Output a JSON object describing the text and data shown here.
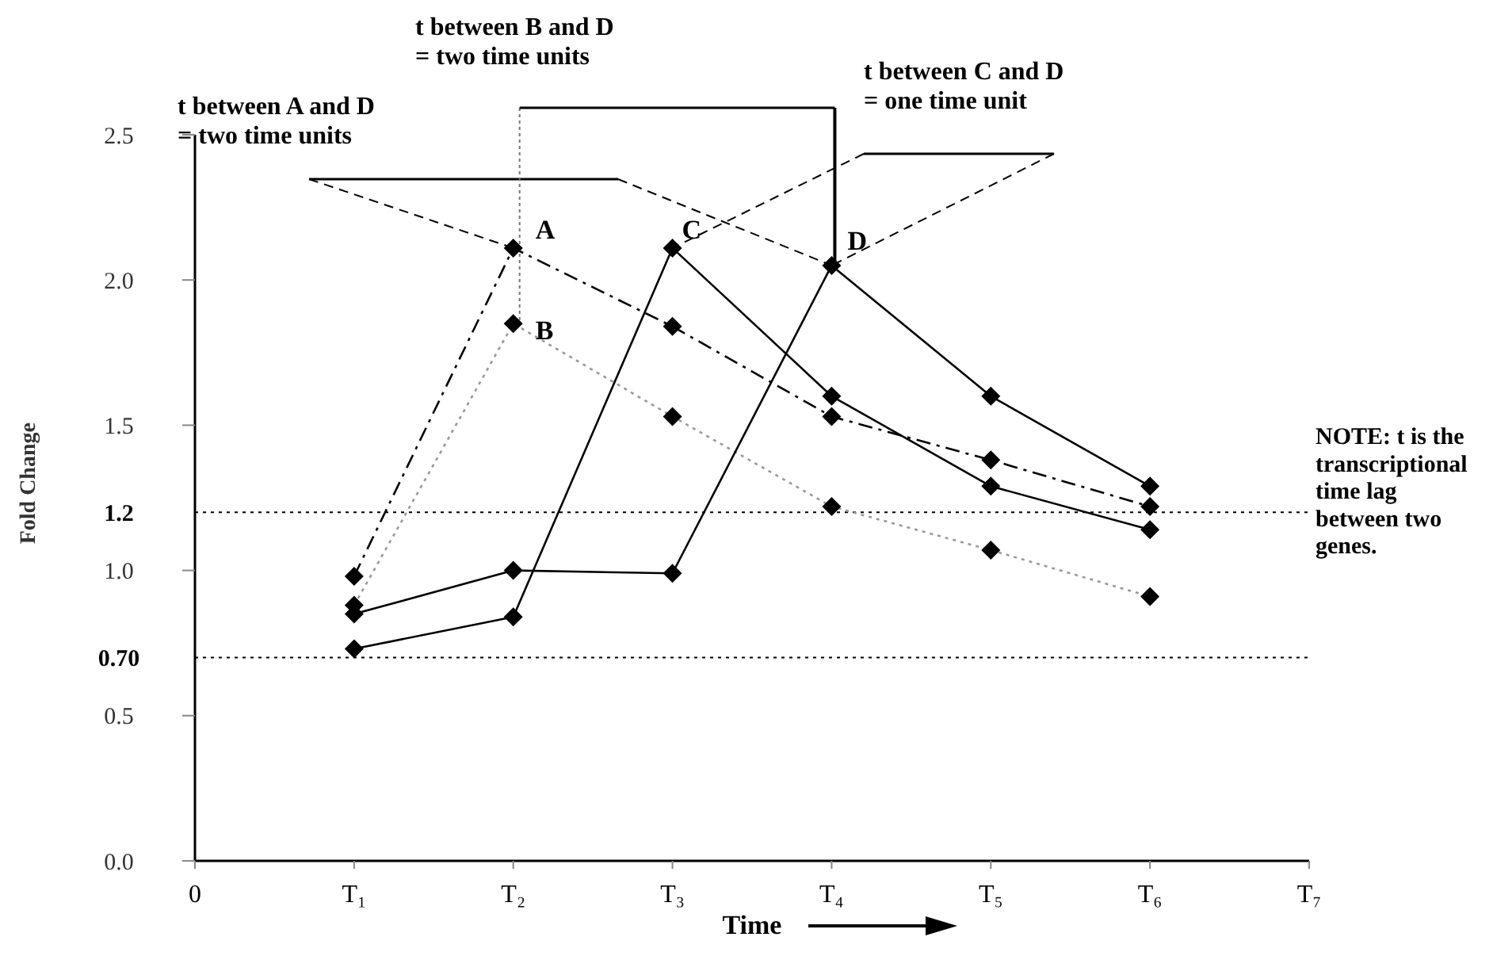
{
  "chart_data": {
    "type": "line",
    "xlabel": "Time",
    "ylabel": "Fold Change",
    "categories": [
      "0",
      "T₁",
      "T₂",
      "T₃",
      "T₄",
      "T₅",
      "T₆",
      "T₇"
    ],
    "ylim": [
      0,
      2.5
    ],
    "yticks": [
      {
        "value": 0,
        "label": "0.0"
      },
      0.5,
      {
        "value": 1,
        "label": "1.0"
      },
      1.5,
      {
        "value": 2,
        "label": "2.0"
      },
      2.5
    ],
    "series": [
      {
        "name": "A",
        "color": "#000000",
        "line_style": "dashed",
        "values": [
          null,
          0.98,
          2.11,
          1.84,
          1.53,
          1.38,
          1.22,
          null
        ]
      },
      {
        "name": "B",
        "color": "#999999",
        "line_style": "dotted",
        "values": [
          null,
          0.88,
          1.85,
          1.53,
          1.22,
          1.07,
          0.91,
          null
        ]
      },
      {
        "name": "C",
        "color": "#000000",
        "line_style": "solid",
        "values": [
          null,
          0.73,
          0.84,
          2.11,
          1.6,
          1.29,
          1.14,
          null
        ]
      },
      {
        "name": "D",
        "color": "#000000",
        "line_style": "solid",
        "values": [
          null,
          0.85,
          1.0,
          0.99,
          2.05,
          1.6,
          1.29,
          null
        ]
      }
    ],
    "marker": "diamond",
    "grid": false,
    "ref_lines": [
      {
        "axis": "y",
        "value": 1.2,
        "label": "1.2",
        "line_style": "dotted",
        "color": "#000000"
      },
      {
        "axis": "y",
        "value": 0.7,
        "label": "0.70",
        "line_style": "dotted",
        "color": "#000000"
      }
    ],
    "annotations": [
      {
        "text": "t between A and D\n= two time units",
        "x": "T₂",
        "y": 2.11
      },
      "t between B and D\n= two time units",
      {
        "text": "t between C and D\n= one time unit",
        "x": "T₄",
        "y": 2.05
      },
      "NOTE: t is the\ntranscriptional\ntime lag\nbetween two\ngenes."
    ]
  }
}
